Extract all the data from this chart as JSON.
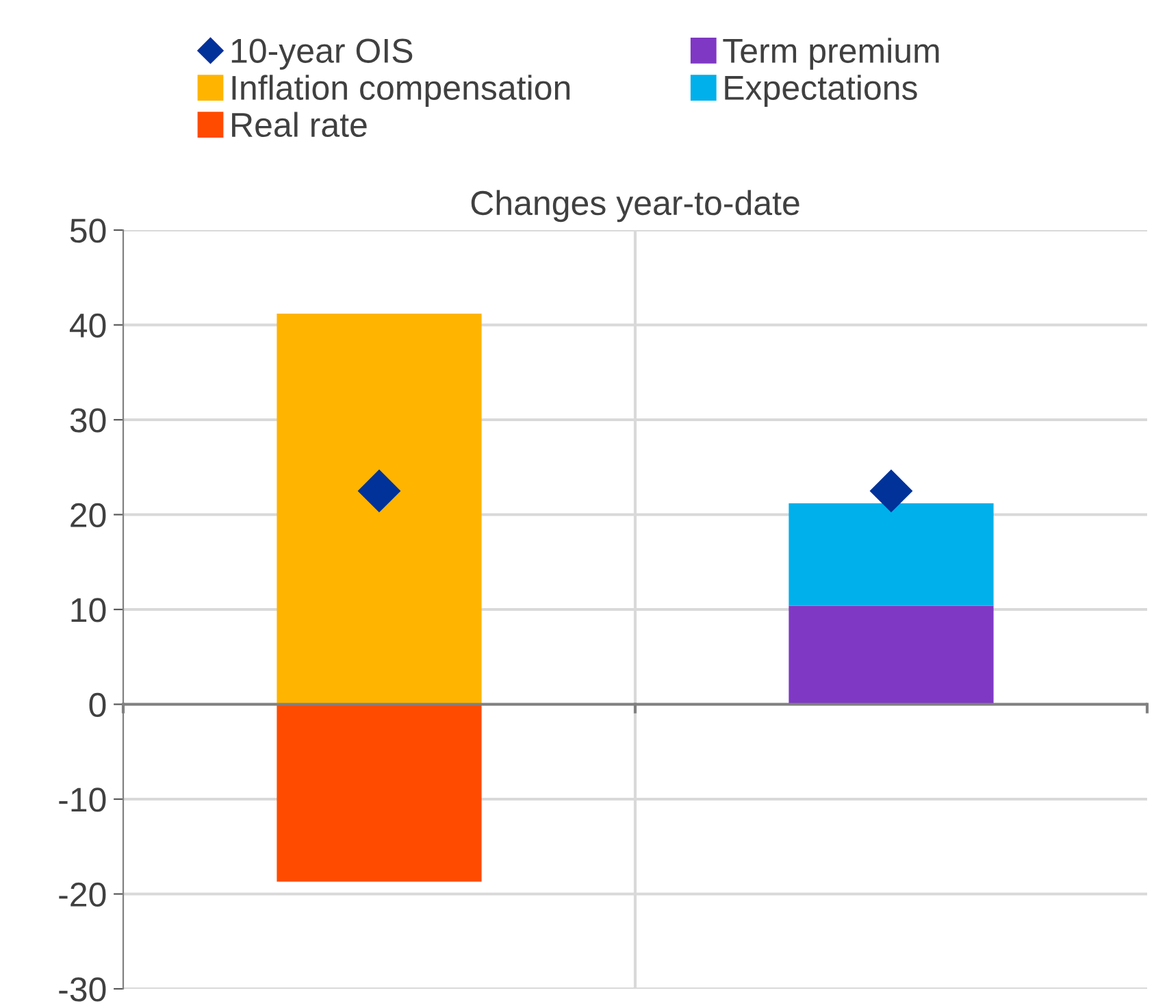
{
  "chart_data": {
    "type": "bar",
    "title": "Changes year-to-date",
    "categories": [
      null,
      null
    ],
    "stacked": true,
    "series": [
      {
        "name": "Inflation compensation",
        "color": "#ffb400",
        "values": [
          41.2,
          null
        ]
      },
      {
        "name": "Real rate",
        "color": "#ff4b00",
        "values": [
          -18.7,
          null
        ]
      },
      {
        "name": "Term premium",
        "color": "#7f38c4",
        "values": [
          null,
          10.4
        ]
      },
      {
        "name": "Expectations",
        "color": "#00b0ea",
        "values": [
          null,
          10.8
        ]
      },
      {
        "name": "10-year OIS",
        "type": "scatter",
        "marker": "diamond",
        "color": "#003299",
        "values": [
          22.5,
          22.5
        ]
      }
    ],
    "ylim": [
      -30,
      50
    ],
    "yticks": [
      -30,
      -20,
      -10,
      0,
      10,
      20,
      30,
      40,
      50
    ],
    "grid": true,
    "legend": "top"
  }
}
